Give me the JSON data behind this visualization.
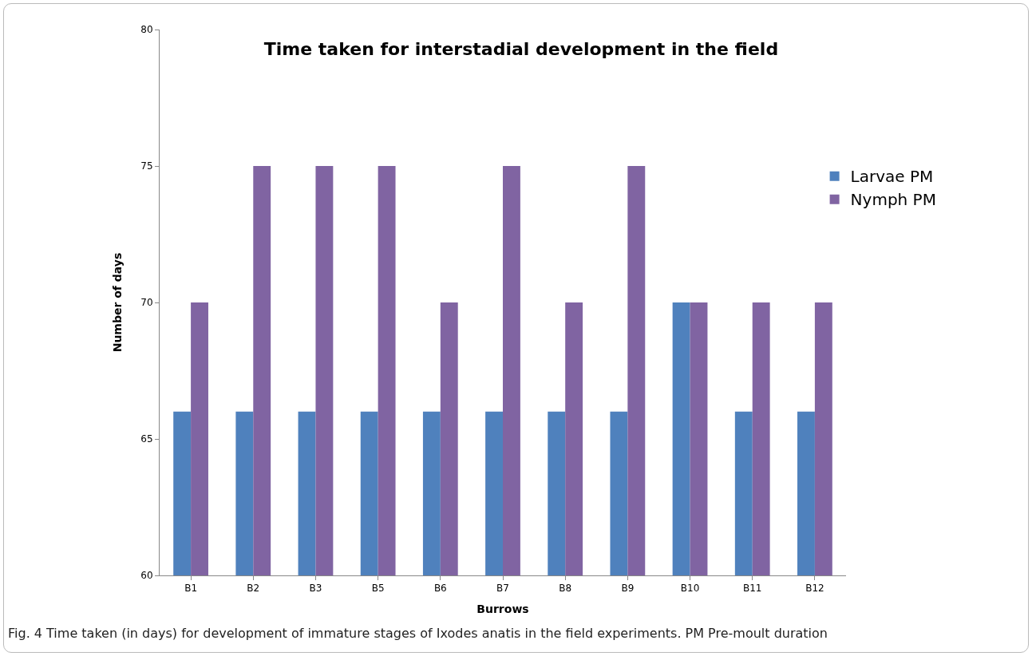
{
  "chart_data": {
    "type": "bar",
    "title": "Time taken for interstadial development in the field",
    "xlabel": "Burrows",
    "ylabel": "Number of days",
    "categories": [
      "B1",
      "B2",
      "B3",
      "B5",
      "B6",
      "B7",
      "B8",
      "B9",
      "B10",
      "B11",
      "B12"
    ],
    "series": [
      {
        "name": "Larvae PM",
        "color": "#4f81bd",
        "values": [
          66,
          66,
          66,
          66,
          66,
          66,
          66,
          66,
          70,
          66,
          66
        ]
      },
      {
        "name": "Nymph PM",
        "color": "#8064a2",
        "values": [
          70,
          75,
          75,
          75,
          70,
          75,
          70,
          75,
          70,
          70,
          70
        ]
      }
    ],
    "ylim": [
      60,
      80
    ],
    "yticks": [
      60,
      65,
      70,
      75,
      80
    ],
    "grid": false,
    "legend": "right",
    "annotations": [
      "Fig. 4  Time taken (in days) for development of immature stages of Ixodes anatis in the field experiments. PM Pre-moult duration"
    ]
  }
}
